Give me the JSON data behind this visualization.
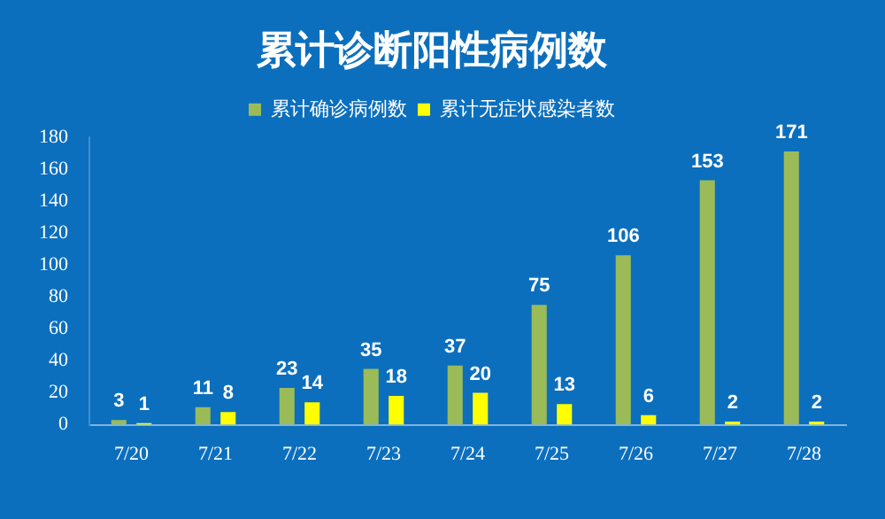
{
  "chart_data": {
    "type": "bar",
    "title": "累计诊断阳性病例数",
    "categories": [
      "7/20",
      "7/21",
      "7/22",
      "7/23",
      "7/24",
      "7/25",
      "7/26",
      "7/27",
      "7/28"
    ],
    "series": [
      {
        "name": "累计确诊病例数",
        "color": "#9bbb59",
        "values": [
          3,
          11,
          23,
          35,
          37,
          75,
          106,
          153,
          171
        ]
      },
      {
        "name": "累计无症状感染者数",
        "color": "#ffff00",
        "values": [
          1,
          8,
          14,
          18,
          20,
          13,
          6,
          2,
          2
        ]
      }
    ],
    "ylim": [
      0,
      180
    ],
    "yticks": [
      0,
      20,
      40,
      60,
      80,
      100,
      120,
      140,
      160,
      180
    ],
    "grid": false,
    "legend": "top",
    "data_labels": true
  }
}
